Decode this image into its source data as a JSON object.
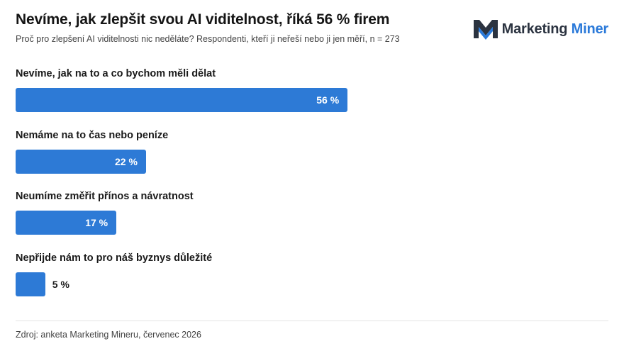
{
  "header": {
    "title": "Nevíme, jak zlepšit svou AI viditelnost, říká 56 % firem",
    "subtitle": "Proč pro zlepšení AI viditelnosti nic neděláte? Respondenti, kteří ji neřeší nebo ji jen měří, n = 273"
  },
  "logo": {
    "word1": "Marketing",
    "word2": "Miner",
    "icon": "marketing-miner-logo-icon"
  },
  "colors": {
    "bar": "#2d7ad6",
    "brand_dark": "#2b3340",
    "brand_blue": "#2a79d9"
  },
  "chart_data": {
    "type": "bar",
    "orientation": "horizontal",
    "categories": [
      "Nevíme, jak na to a co bychom měli dělat",
      "Nemáme na to čas nebo peníze",
      "Neumíme změřit přínos a návratnost",
      "Nepřijde nám to pro náš byznys důležité"
    ],
    "values": [
      56,
      22,
      17,
      5
    ],
    "value_labels": [
      "56 %",
      "22 %",
      "17 %",
      "5 %"
    ],
    "unit": "%",
    "xlim": [
      0,
      100
    ],
    "grid": false,
    "legend": "none"
  },
  "footer": {
    "source": "Zdroj: anketa Marketing Mineru, červenec 2026"
  }
}
